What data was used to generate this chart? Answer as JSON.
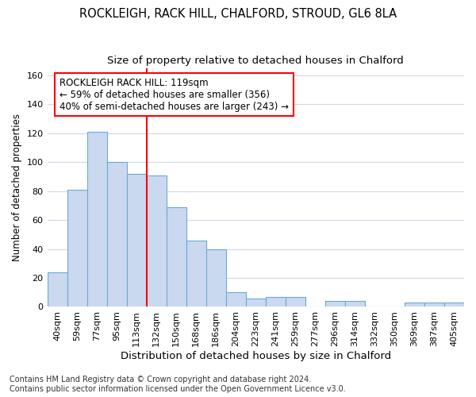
{
  "title": "ROCKLEIGH, RACK HILL, CHALFORD, STROUD, GL6 8LA",
  "subtitle": "Size of property relative to detached houses in Chalford",
  "xlabel": "Distribution of detached houses by size in Chalford",
  "ylabel": "Number of detached properties",
  "categories": [
    "40sqm",
    "59sqm",
    "77sqm",
    "95sqm",
    "113sqm",
    "132sqm",
    "150sqm",
    "168sqm",
    "186sqm",
    "204sqm",
    "223sqm",
    "241sqm",
    "259sqm",
    "277sqm",
    "296sqm",
    "314sqm",
    "332sqm",
    "350sqm",
    "369sqm",
    "387sqm",
    "405sqm"
  ],
  "values": [
    24,
    81,
    121,
    100,
    92,
    91,
    69,
    46,
    40,
    10,
    6,
    7,
    7,
    0,
    4,
    4,
    0,
    0,
    3,
    3,
    3
  ],
  "bar_color": "#cad9f0",
  "bar_edge_color": "#6aaad4",
  "red_line_x": 5,
  "annotation_lines": [
    "ROCKLEIGH RACK HILL: 119sqm",
    "← 59% of detached houses are smaller (356)",
    "40% of semi-detached houses are larger (243) →"
  ],
  "annotation_box_color": "white",
  "annotation_box_edge_color": "red",
  "red_line_color": "red",
  "ylim": [
    0,
    165
  ],
  "yticks": [
    0,
    20,
    40,
    60,
    80,
    100,
    120,
    140,
    160
  ],
  "footer_line1": "Contains HM Land Registry data © Crown copyright and database right 2024.",
  "footer_line2": "Contains public sector information licensed under the Open Government Licence v3.0.",
  "background_color": "#ffffff",
  "plot_bg_color": "#ffffff",
  "grid_color": "#d0d8e8",
  "title_fontsize": 10.5,
  "subtitle_fontsize": 9.5,
  "xlabel_fontsize": 9.5,
  "ylabel_fontsize": 8.5,
  "tick_fontsize": 8,
  "annotation_fontsize": 8.5,
  "footer_fontsize": 7
}
